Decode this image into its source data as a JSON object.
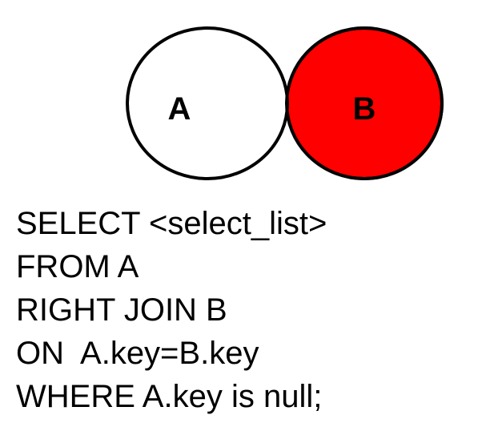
{
  "diagram": {
    "left_label": "A",
    "right_label": "B",
    "highlight_color": "#ff0000",
    "outline_color": "#000000",
    "fill_color": "#ffffff"
  },
  "sql": {
    "lines": [
      "SELECT <select_list>",
      "FROM A",
      "RIGHT JOIN B",
      "ON  A.key=B.key",
      "WHERE A.key is null;"
    ]
  }
}
